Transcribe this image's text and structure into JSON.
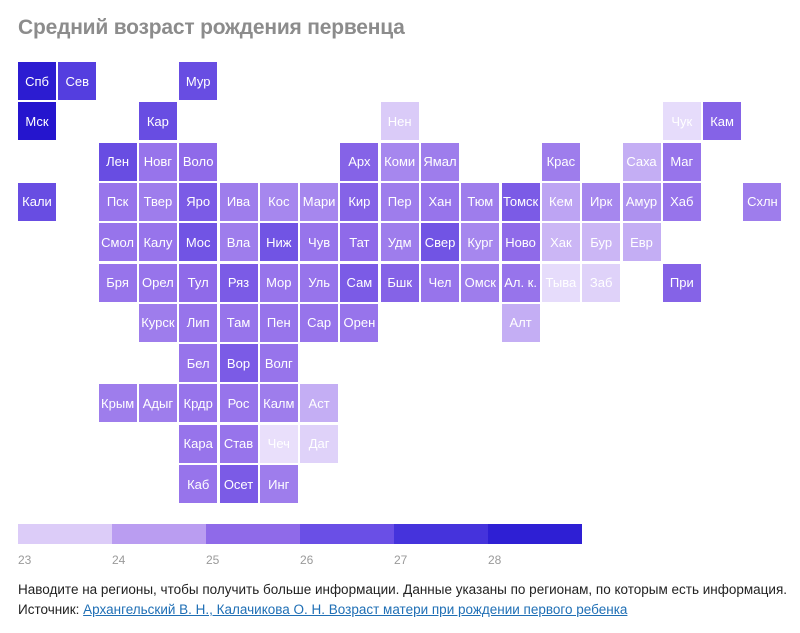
{
  "chart_data": {
    "type": "heatmap",
    "title": "Средний возраст рождения первенца",
    "value_unit": "years",
    "tiles": [
      {
        "label": "Спб",
        "col": 0,
        "row": 0,
        "value": 28.5
      },
      {
        "label": "Сев",
        "col": 1,
        "row": 0,
        "value": 27.2
      },
      {
        "label": "Мур",
        "col": 4,
        "row": 0,
        "value": 26.8
      },
      {
        "label": "Мск",
        "col": 0,
        "row": 1,
        "value": 28.8
      },
      {
        "label": "Кар",
        "col": 3,
        "row": 1,
        "value": 26.8
      },
      {
        "label": "Нен",
        "col": 9,
        "row": 1,
        "value": 23.8
      },
      {
        "label": "Чук",
        "col": 16,
        "row": 1,
        "value": 23.3
      },
      {
        "label": "Кам",
        "col": 17,
        "row": 1,
        "value": 26.2
      },
      {
        "label": "Лен",
        "col": 2,
        "row": 2,
        "value": 26.8
      },
      {
        "label": "Новг",
        "col": 3,
        "row": 2,
        "value": 25.8
      },
      {
        "label": "Воло",
        "col": 4,
        "row": 2,
        "value": 26.0
      },
      {
        "label": "Арх",
        "col": 8,
        "row": 2,
        "value": 26.2
      },
      {
        "label": "Коми",
        "col": 9,
        "row": 2,
        "value": 25.4
      },
      {
        "label": "Ямал",
        "col": 10,
        "row": 2,
        "value": 25.6
      },
      {
        "label": "Крас",
        "col": 13,
        "row": 2,
        "value": 25.6
      },
      {
        "label": "Саха",
        "col": 15,
        "row": 2,
        "value": 24.6
      },
      {
        "label": "Маг",
        "col": 16,
        "row": 2,
        "value": 25.8
      },
      {
        "label": "Кали",
        "col": 0,
        "row": 3,
        "value": 26.8
      },
      {
        "label": "Пск",
        "col": 2,
        "row": 3,
        "value": 25.8
      },
      {
        "label": "Твер",
        "col": 3,
        "row": 3,
        "value": 25.6
      },
      {
        "label": "Яро",
        "col": 4,
        "row": 3,
        "value": 26.4
      },
      {
        "label": "Ива",
        "col": 5,
        "row": 3,
        "value": 25.6
      },
      {
        "label": "Кос",
        "col": 6,
        "row": 3,
        "value": 25.4
      },
      {
        "label": "Мари",
        "col": 7,
        "row": 3,
        "value": 25.4
      },
      {
        "label": "Кир",
        "col": 8,
        "row": 3,
        "value": 26.2
      },
      {
        "label": "Пер",
        "col": 9,
        "row": 3,
        "value": 25.6
      },
      {
        "label": "Хан",
        "col": 10,
        "row": 3,
        "value": 25.8
      },
      {
        "label": "Тюм",
        "col": 11,
        "row": 3,
        "value": 25.6
      },
      {
        "label": "Томск",
        "col": 12,
        "row": 3,
        "value": 26.4
      },
      {
        "label": "Кем",
        "col": 13,
        "row": 3,
        "value": 24.8
      },
      {
        "label": "Ирк",
        "col": 14,
        "row": 3,
        "value": 25.4
      },
      {
        "label": "Амур",
        "col": 15,
        "row": 3,
        "value": 25.2
      },
      {
        "label": "Хаб",
        "col": 16,
        "row": 3,
        "value": 25.8
      },
      {
        "label": "Схлн",
        "col": 18,
        "row": 3,
        "value": 25.6
      },
      {
        "label": "Смол",
        "col": 2,
        "row": 4,
        "value": 25.8
      },
      {
        "label": "Калу",
        "col": 3,
        "row": 4,
        "value": 25.8
      },
      {
        "label": "Мос",
        "col": 4,
        "row": 4,
        "value": 26.6
      },
      {
        "label": "Вла",
        "col": 5,
        "row": 4,
        "value": 25.6
      },
      {
        "label": "Ниж",
        "col": 6,
        "row": 4,
        "value": 26.6
      },
      {
        "label": "Чув",
        "col": 7,
        "row": 4,
        "value": 25.8
      },
      {
        "label": "Тат",
        "col": 8,
        "row": 4,
        "value": 26.0
      },
      {
        "label": "Удм",
        "col": 9,
        "row": 4,
        "value": 25.6
      },
      {
        "label": "Свер",
        "col": 10,
        "row": 4,
        "value": 26.6
      },
      {
        "label": "Кург",
        "col": 11,
        "row": 4,
        "value": 25.4
      },
      {
        "label": "Ново",
        "col": 12,
        "row": 4,
        "value": 26.0
      },
      {
        "label": "Хак",
        "col": 13,
        "row": 4,
        "value": 24.4
      },
      {
        "label": "Бур",
        "col": 14,
        "row": 4,
        "value": 24.4
      },
      {
        "label": "Евр",
        "col": 15,
        "row": 4,
        "value": 24.6
      },
      {
        "label": "Бря",
        "col": 2,
        "row": 5,
        "value": 25.8
      },
      {
        "label": "Орел",
        "col": 3,
        "row": 5,
        "value": 25.8
      },
      {
        "label": "Тул",
        "col": 4,
        "row": 5,
        "value": 26.0
      },
      {
        "label": "Ряз",
        "col": 5,
        "row": 5,
        "value": 26.4
      },
      {
        "label": "Мор",
        "col": 6,
        "row": 5,
        "value": 25.8
      },
      {
        "label": "Уль",
        "col": 7,
        "row": 5,
        "value": 25.8
      },
      {
        "label": "Сам",
        "col": 8,
        "row": 5,
        "value": 26.4
      },
      {
        "label": "Бшк",
        "col": 9,
        "row": 5,
        "value": 26.2
      },
      {
        "label": "Чел",
        "col": 10,
        "row": 5,
        "value": 25.8
      },
      {
        "label": "Омск",
        "col": 11,
        "row": 5,
        "value": 25.6
      },
      {
        "label": "Ал. к.",
        "col": 12,
        "row": 5,
        "value": 25.8
      },
      {
        "label": "Тыва",
        "col": 13,
        "row": 5,
        "value": 23.3
      },
      {
        "label": "Заб",
        "col": 14,
        "row": 5,
        "value": 23.6
      },
      {
        "label": "При",
        "col": 16,
        "row": 5,
        "value": 26.2
      },
      {
        "label": "Курск",
        "col": 3,
        "row": 6,
        "value": 25.6
      },
      {
        "label": "Лип",
        "col": 4,
        "row": 6,
        "value": 25.8
      },
      {
        "label": "Там",
        "col": 5,
        "row": 6,
        "value": 25.8
      },
      {
        "label": "Пен",
        "col": 6,
        "row": 6,
        "value": 25.8
      },
      {
        "label": "Сар",
        "col": 7,
        "row": 6,
        "value": 25.8
      },
      {
        "label": "Орен",
        "col": 8,
        "row": 6,
        "value": 25.8
      },
      {
        "label": "Алт",
        "col": 12,
        "row": 6,
        "value": 24.6
      },
      {
        "label": "Бел",
        "col": 4,
        "row": 7,
        "value": 25.8
      },
      {
        "label": "Вор",
        "col": 5,
        "row": 7,
        "value": 26.4
      },
      {
        "label": "Волг",
        "col": 6,
        "row": 7,
        "value": 25.8
      },
      {
        "label": "Крым",
        "col": 2,
        "row": 8,
        "value": 25.6
      },
      {
        "label": "Адыг",
        "col": 3,
        "row": 8,
        "value": 25.6
      },
      {
        "label": "Крдр",
        "col": 4,
        "row": 8,
        "value": 25.8
      },
      {
        "label": "Рос",
        "col": 5,
        "row": 8,
        "value": 25.8
      },
      {
        "label": "Калм",
        "col": 6,
        "row": 8,
        "value": 25.6
      },
      {
        "label": "Аст",
        "col": 7,
        "row": 8,
        "value": 24.6
      },
      {
        "label": "Кара",
        "col": 4,
        "row": 9,
        "value": 25.8
      },
      {
        "label": "Став",
        "col": 5,
        "row": 9,
        "value": 25.8
      },
      {
        "label": "Чеч",
        "col": 6,
        "row": 9,
        "value": 23.2
      },
      {
        "label": "Даг",
        "col": 7,
        "row": 9,
        "value": 23.6
      },
      {
        "label": "Каб",
        "col": 4,
        "row": 10,
        "value": 25.8
      },
      {
        "label": "Осет",
        "col": 5,
        "row": 10,
        "value": 26.4
      },
      {
        "label": "Инг",
        "col": 6,
        "row": 10,
        "value": 25.6
      }
    ],
    "scale": {
      "ticks": [
        "23",
        "24",
        "25",
        "26",
        "27",
        "28"
      ],
      "bins": [
        23,
        24,
        25,
        26,
        27,
        28,
        29
      ],
      "colors": [
        "#dcccf8",
        "#ba9df1",
        "#8f6ae9",
        "#6a4fe6",
        "#4533dc",
        "#2e1fd4"
      ]
    }
  },
  "footer": {
    "text": "Наводите на регионы, чтобы получить больше информации. Данные указаны по регионам, по которым есть информация. Источник: ",
    "link_text": "Архангельский В. Н., Калачикова О. Н. Возраст матери при рождении первого ребенка"
  }
}
